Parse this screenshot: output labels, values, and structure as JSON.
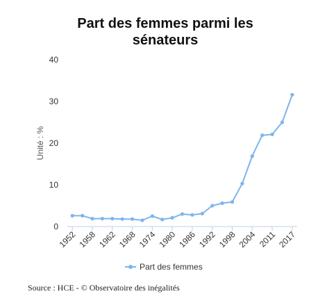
{
  "chart_data": {
    "type": "line",
    "title_line1": "Part des femmes parmi les",
    "title_line2": "sénateurs",
    "ylabel": "Unité : %",
    "xlabel": "",
    "ylim": [
      0,
      40
    ],
    "yticks": [
      0,
      10,
      20,
      30,
      40
    ],
    "x_tick_labels": [
      "1952",
      "1958",
      "1962",
      "1968",
      "1974",
      "1980",
      "1986",
      "1992",
      "1998",
      "2004",
      "2011",
      "2017"
    ],
    "grid": false,
    "legend_position": "bottom",
    "series": [
      {
        "name": "Part des femmes",
        "color": "#7cb5ec",
        "values": [
          2.6,
          2.6,
          1.9,
          1.9,
          1.9,
          1.8,
          1.8,
          1.5,
          2.5,
          1.7,
          2.1,
          3.0,
          2.8,
          3.1,
          5.0,
          5.6,
          5.9,
          10.3,
          16.9,
          21.9,
          22.1,
          25.0,
          31.6
        ]
      }
    ]
  },
  "source": "Source : HCE - © Observatoire des inégalités"
}
